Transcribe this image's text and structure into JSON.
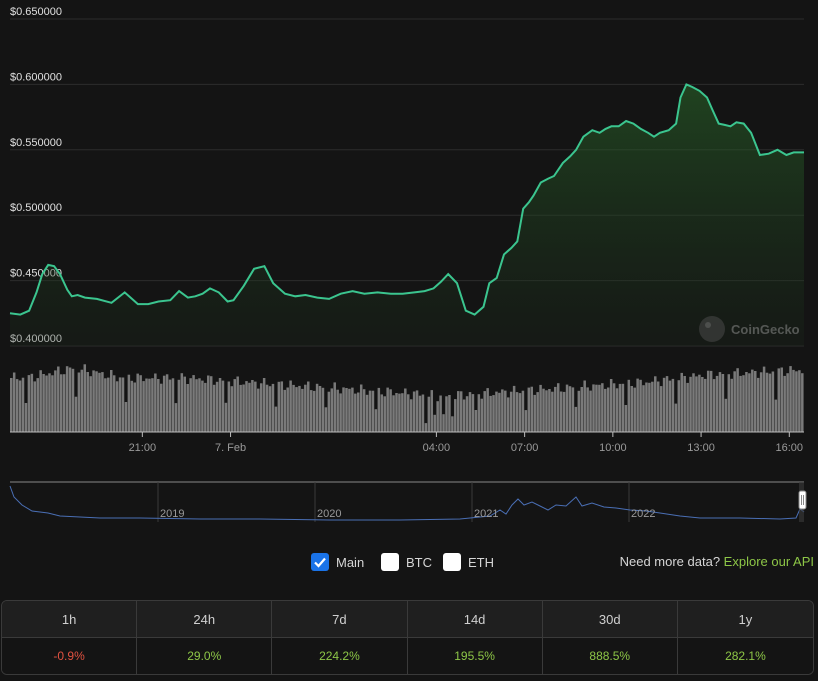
{
  "colors": {
    "line": "#3bc58f",
    "volume": "#7a7a7a",
    "navigator": "#4a6fb5",
    "positive": "#8dc647",
    "negative": "#e15241",
    "checkbox_checked": "#1a73e8"
  },
  "watermark": {
    "text": "CoinGecko",
    "icon": "coingecko-logo-icon"
  },
  "chart_data": {
    "type": "line",
    "title": "",
    "ylabel": "",
    "xlabel": "",
    "ylim": [
      0.4,
      0.65
    ],
    "y_ticks": [
      "$0.650000",
      "$0.600000",
      "$0.550000",
      "$0.500000",
      "$0.450000",
      "$0.400000"
    ],
    "y_tick_values": [
      0.65,
      0.6,
      0.55,
      0.5,
      0.45,
      0.4
    ],
    "x_ticks": [
      "21:00",
      "7. Feb",
      "04:00",
      "07:00",
      "10:00",
      "13:00",
      "16:00"
    ],
    "x_tick_hours": [
      3.75,
      6.75,
      13.75,
      16.75,
      19.75,
      22.75,
      25.75
    ],
    "x_range_hours": [
      -0.75,
      26.25
    ],
    "grid": true,
    "series": [
      {
        "x": [
          -0.75,
          -0.4,
          -0.1,
          0.15,
          0.35,
          0.55,
          0.75,
          0.95,
          1.2,
          1.35,
          1.55,
          1.8,
          2.2,
          2.7,
          3.15,
          3.6,
          3.95,
          4.3,
          4.7,
          5.0,
          5.3,
          5.55,
          5.8,
          6.05,
          6.35,
          6.65,
          6.85,
          7.2,
          7.55,
          7.9,
          8.2,
          8.6,
          8.95,
          9.3,
          9.7,
          10.1,
          10.5,
          10.9,
          11.3,
          11.75,
          12.2,
          12.6,
          13.0,
          13.35,
          13.65,
          13.9,
          14.15,
          14.45,
          14.75,
          15.05,
          15.35,
          15.55,
          15.8,
          16.05,
          16.3,
          16.5,
          16.7,
          16.9,
          17.05,
          17.3,
          17.55,
          17.75,
          18.05,
          18.3,
          18.5,
          18.75,
          19.05,
          19.3,
          19.5,
          19.7,
          19.95,
          20.2,
          20.45,
          20.7,
          20.95,
          21.15,
          21.35,
          21.65,
          21.9,
          22.05,
          22.25,
          22.45,
          22.7,
          22.95,
          23.15,
          23.35,
          23.55,
          23.75,
          23.95,
          24.2,
          24.45,
          24.75,
          25.05,
          25.35,
          25.65,
          25.9,
          26.25
        ],
        "values": [
          0.425,
          0.424,
          0.427,
          0.441,
          0.455,
          0.462,
          0.461,
          0.455,
          0.443,
          0.438,
          0.439,
          0.437,
          0.436,
          0.433,
          0.441,
          0.432,
          0.432,
          0.434,
          0.435,
          0.442,
          0.437,
          0.438,
          0.44,
          0.444,
          0.441,
          0.434,
          0.435,
          0.446,
          0.459,
          0.461,
          0.448,
          0.44,
          0.438,
          0.439,
          0.437,
          0.436,
          0.44,
          0.442,
          0.44,
          0.441,
          0.44,
          0.44,
          0.441,
          0.442,
          0.444,
          0.449,
          0.455,
          0.448,
          0.427,
          0.424,
          0.43,
          0.448,
          0.452,
          0.47,
          0.475,
          0.48,
          0.505,
          0.51,
          0.515,
          0.525,
          0.528,
          0.53,
          0.54,
          0.545,
          0.55,
          0.56,
          0.565,
          0.563,
          0.566,
          0.568,
          0.568,
          0.572,
          0.57,
          0.566,
          0.563,
          0.56,
          0.563,
          0.565,
          0.57,
          0.59,
          0.6,
          0.598,
          0.595,
          0.59,
          0.58,
          0.57,
          0.569,
          0.568,
          0.571,
          0.57,
          0.563,
          0.546,
          0.547,
          0.55,
          0.546,
          0.548,
          0.548
        ]
      }
    ]
  },
  "navigator": {
    "labels": [
      "2019",
      "2020",
      "2021",
      "2022"
    ]
  },
  "controls": {
    "main_label": "Main",
    "btc_label": "BTC",
    "eth_label": "ETH",
    "main_checked": true,
    "btc_checked": false,
    "eth_checked": false,
    "api_prefix": "Need more data?",
    "api_link": "Explore our API"
  },
  "stats": {
    "columns": [
      {
        "label": "1h",
        "value": "-0.9%",
        "direction": "down"
      },
      {
        "label": "24h",
        "value": "29.0%",
        "direction": "up"
      },
      {
        "label": "7d",
        "value": "224.2%",
        "direction": "up"
      },
      {
        "label": "14d",
        "value": "195.5%",
        "direction": "up"
      },
      {
        "label": "30d",
        "value": "888.5%",
        "direction": "up"
      },
      {
        "label": "1y",
        "value": "282.1%",
        "direction": "up"
      }
    ]
  }
}
